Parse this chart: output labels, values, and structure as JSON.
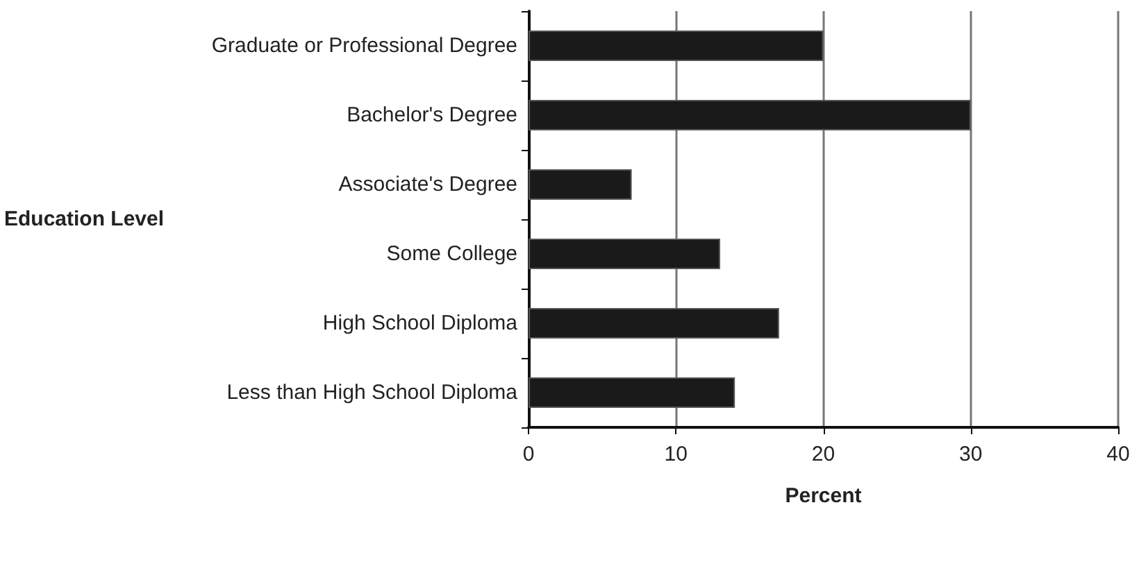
{
  "chart_data": {
    "type": "bar",
    "orientation": "horizontal",
    "xlabel": "Percent",
    "ylabel": "Education Level",
    "categories": [
      "Graduate or Professional Degree",
      "Bachelor's Degree",
      "Associate's Degree",
      "Some College",
      "High School Diploma",
      "Less than High School Diploma"
    ],
    "values": [
      20,
      30,
      7,
      13,
      17,
      14
    ],
    "color": "#1a1a1a",
    "xlim": [
      0,
      40
    ],
    "xticks": [
      0,
      10,
      20,
      30,
      40
    ],
    "grid": "x"
  }
}
